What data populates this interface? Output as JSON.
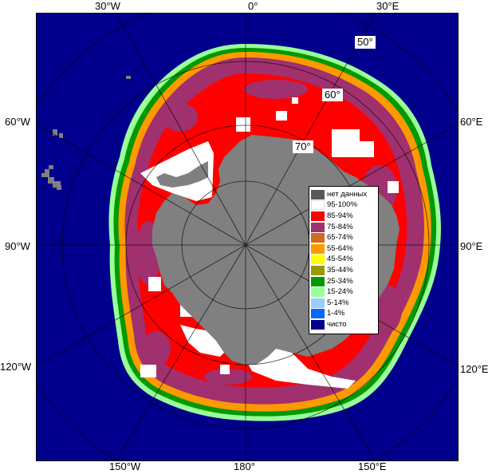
{
  "longitude_labels": {
    "top": [
      "30°W",
      "0°",
      "30°E"
    ],
    "left": [
      "60°W",
      "90°W",
      "120°W"
    ],
    "right": [
      "60°E",
      "90°E",
      "120°E"
    ],
    "bottom": [
      "150°W",
      "180°",
      "150°E"
    ]
  },
  "latitude_labels": [
    "50°",
    "60°",
    "70°"
  ],
  "legend": {
    "items": [
      {
        "label": "нет данных",
        "color": "#595959"
      },
      {
        "label": "95-100%",
        "color": "#ffffff"
      },
      {
        "label": "85-94%",
        "color": "#ff0000"
      },
      {
        "label": "75-84%",
        "color": "#a0306e"
      },
      {
        "label": "65-74%",
        "color": "#d2691e"
      },
      {
        "label": "55-64%",
        "color": "#ff9900"
      },
      {
        "label": "45-54%",
        "color": "#ffff00"
      },
      {
        "label": "35-44%",
        "color": "#9a9a00"
      },
      {
        "label": "25-34%",
        "color": "#009900"
      },
      {
        "label": "15-24%",
        "color": "#99ff99"
      },
      {
        "label": "5-14%",
        "color": "#99ccff"
      },
      {
        "label": "1-4%",
        "color": "#0066ff"
      },
      {
        "label": "чисто",
        "color": "#00008c"
      }
    ]
  },
  "colors": {
    "ocean": "#00008c",
    "land": "#808080",
    "no_data": "#595959",
    "grid": "#b0b0b0"
  }
}
